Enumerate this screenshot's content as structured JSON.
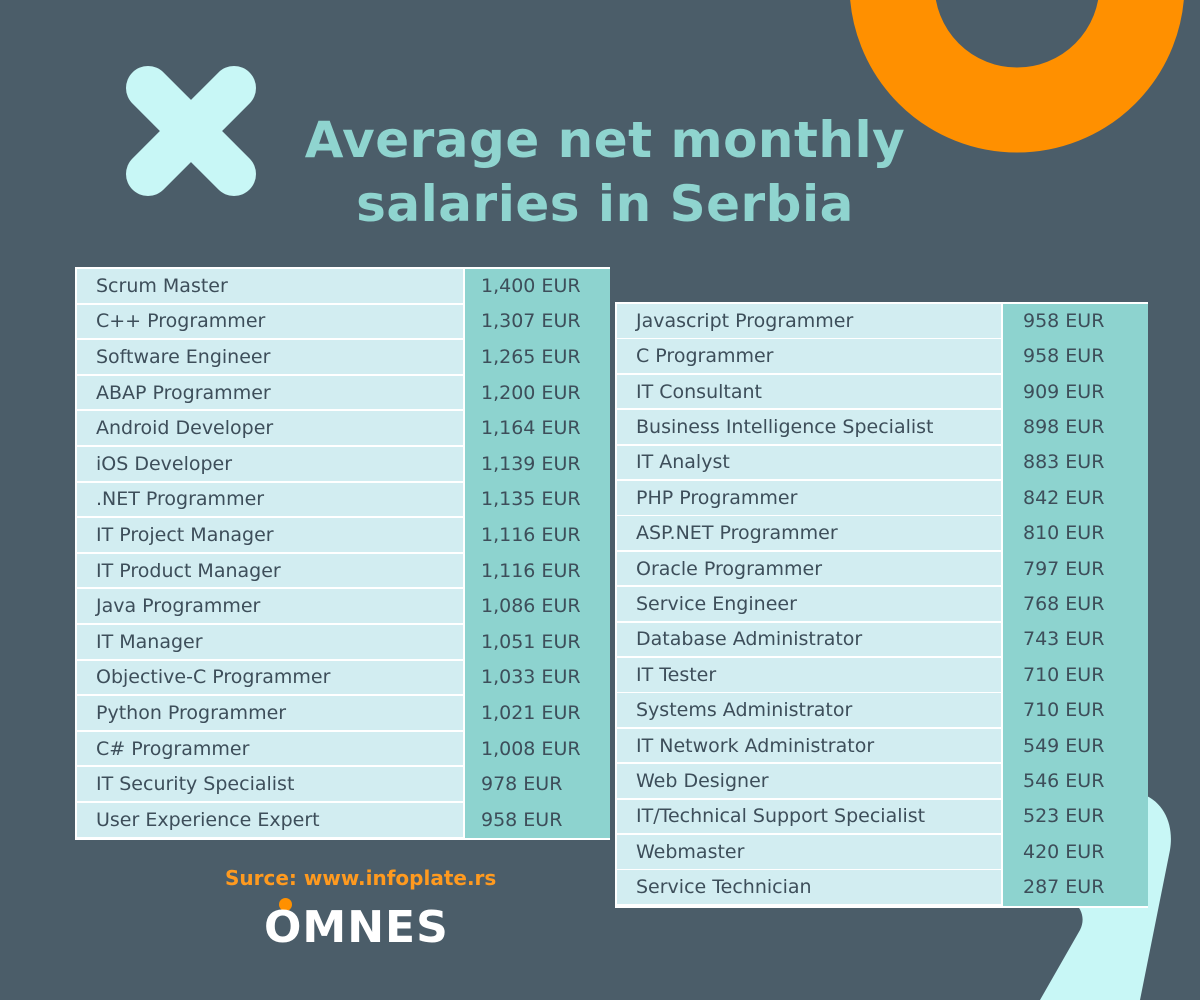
{
  "title": {
    "line1": "Average net monthly",
    "line2": "salaries in Serbia"
  },
  "colors": {
    "background": "#4b5d69",
    "title": "#8fd4cf",
    "cross": "#c8f7f6",
    "ring": "#ff9000",
    "arrow": "#c8f7f6",
    "row_bg": "#d2edf1",
    "value_col": "#8dd3cf",
    "source": "#ff9a1f",
    "logo_dot": "#ff9000"
  },
  "decorations": {
    "cross": "close-icon",
    "ring": "ring-shape",
    "arrow": "chevron-shape"
  },
  "table_left": [
    {
      "job": "Scrum Master",
      "salary": "1,400 EUR"
    },
    {
      "job": "C++ Programmer",
      "salary": "1,307 EUR"
    },
    {
      "job": "Software Engineer",
      "salary": "1,265 EUR"
    },
    {
      "job": "ABAP Programmer",
      "salary": "1,200 EUR"
    },
    {
      "job": "Android Developer",
      "salary": "1,164 EUR"
    },
    {
      "job": "iOS Developer",
      "salary": "1,139 EUR"
    },
    {
      "job": ".NET Programmer",
      "salary": "1,135 EUR"
    },
    {
      "job": "IT Project Manager",
      "salary": "1,116 EUR"
    },
    {
      "job": "IT Product Manager",
      "salary": "1,116 EUR"
    },
    {
      "job": "Java Programmer",
      "salary": "1,086 EUR"
    },
    {
      "job": "IT Manager",
      "salary": "1,051 EUR"
    },
    {
      "job": "Objective-C Programmer",
      "salary": "1,033 EUR"
    },
    {
      "job": "Python Programmer",
      "salary": "1,021 EUR"
    },
    {
      "job": "C# Programmer",
      "salary": "1,008 EUR"
    },
    {
      "job": "IT Security Specialist",
      "salary": "978 EUR"
    },
    {
      "job": "User Experience Expert",
      "salary": "958 EUR"
    }
  ],
  "table_right": [
    {
      "job": "Javascript Programmer",
      "salary": "958 EUR"
    },
    {
      "job": "C Programmer",
      "salary": "958 EUR"
    },
    {
      "job": "IT Consultant",
      "salary": "909 EUR"
    },
    {
      "job": "Business Intelligence Specialist",
      "salary": "898 EUR"
    },
    {
      "job": "IT Analyst",
      "salary": "883 EUR"
    },
    {
      "job": "PHP Programmer",
      "salary": "842 EUR"
    },
    {
      "job": "ASP.NET Programmer",
      "salary": "810 EUR"
    },
    {
      "job": "Oracle Programmer",
      "salary": "797 EUR"
    },
    {
      "job": "Service Engineer",
      "salary": "768 EUR"
    },
    {
      "job": "Database Administrator",
      "salary": "743 EUR"
    },
    {
      "job": "IT Tester",
      "salary": "710 EUR"
    },
    {
      "job": "Systems Administrator",
      "salary": "710 EUR"
    },
    {
      "job": "IT Network Administrator",
      "salary": "549 EUR"
    },
    {
      "job": "Web Designer",
      "salary": "546 EUR"
    },
    {
      "job": "IT/Technical Support Specialist",
      "salary": "523 EUR"
    },
    {
      "job": "Webmaster",
      "salary": "420 EUR"
    },
    {
      "job": "Service Technician",
      "salary": "287 EUR"
    }
  ],
  "source": "Surce: www.infoplate.rs",
  "logo": "OMNES"
}
